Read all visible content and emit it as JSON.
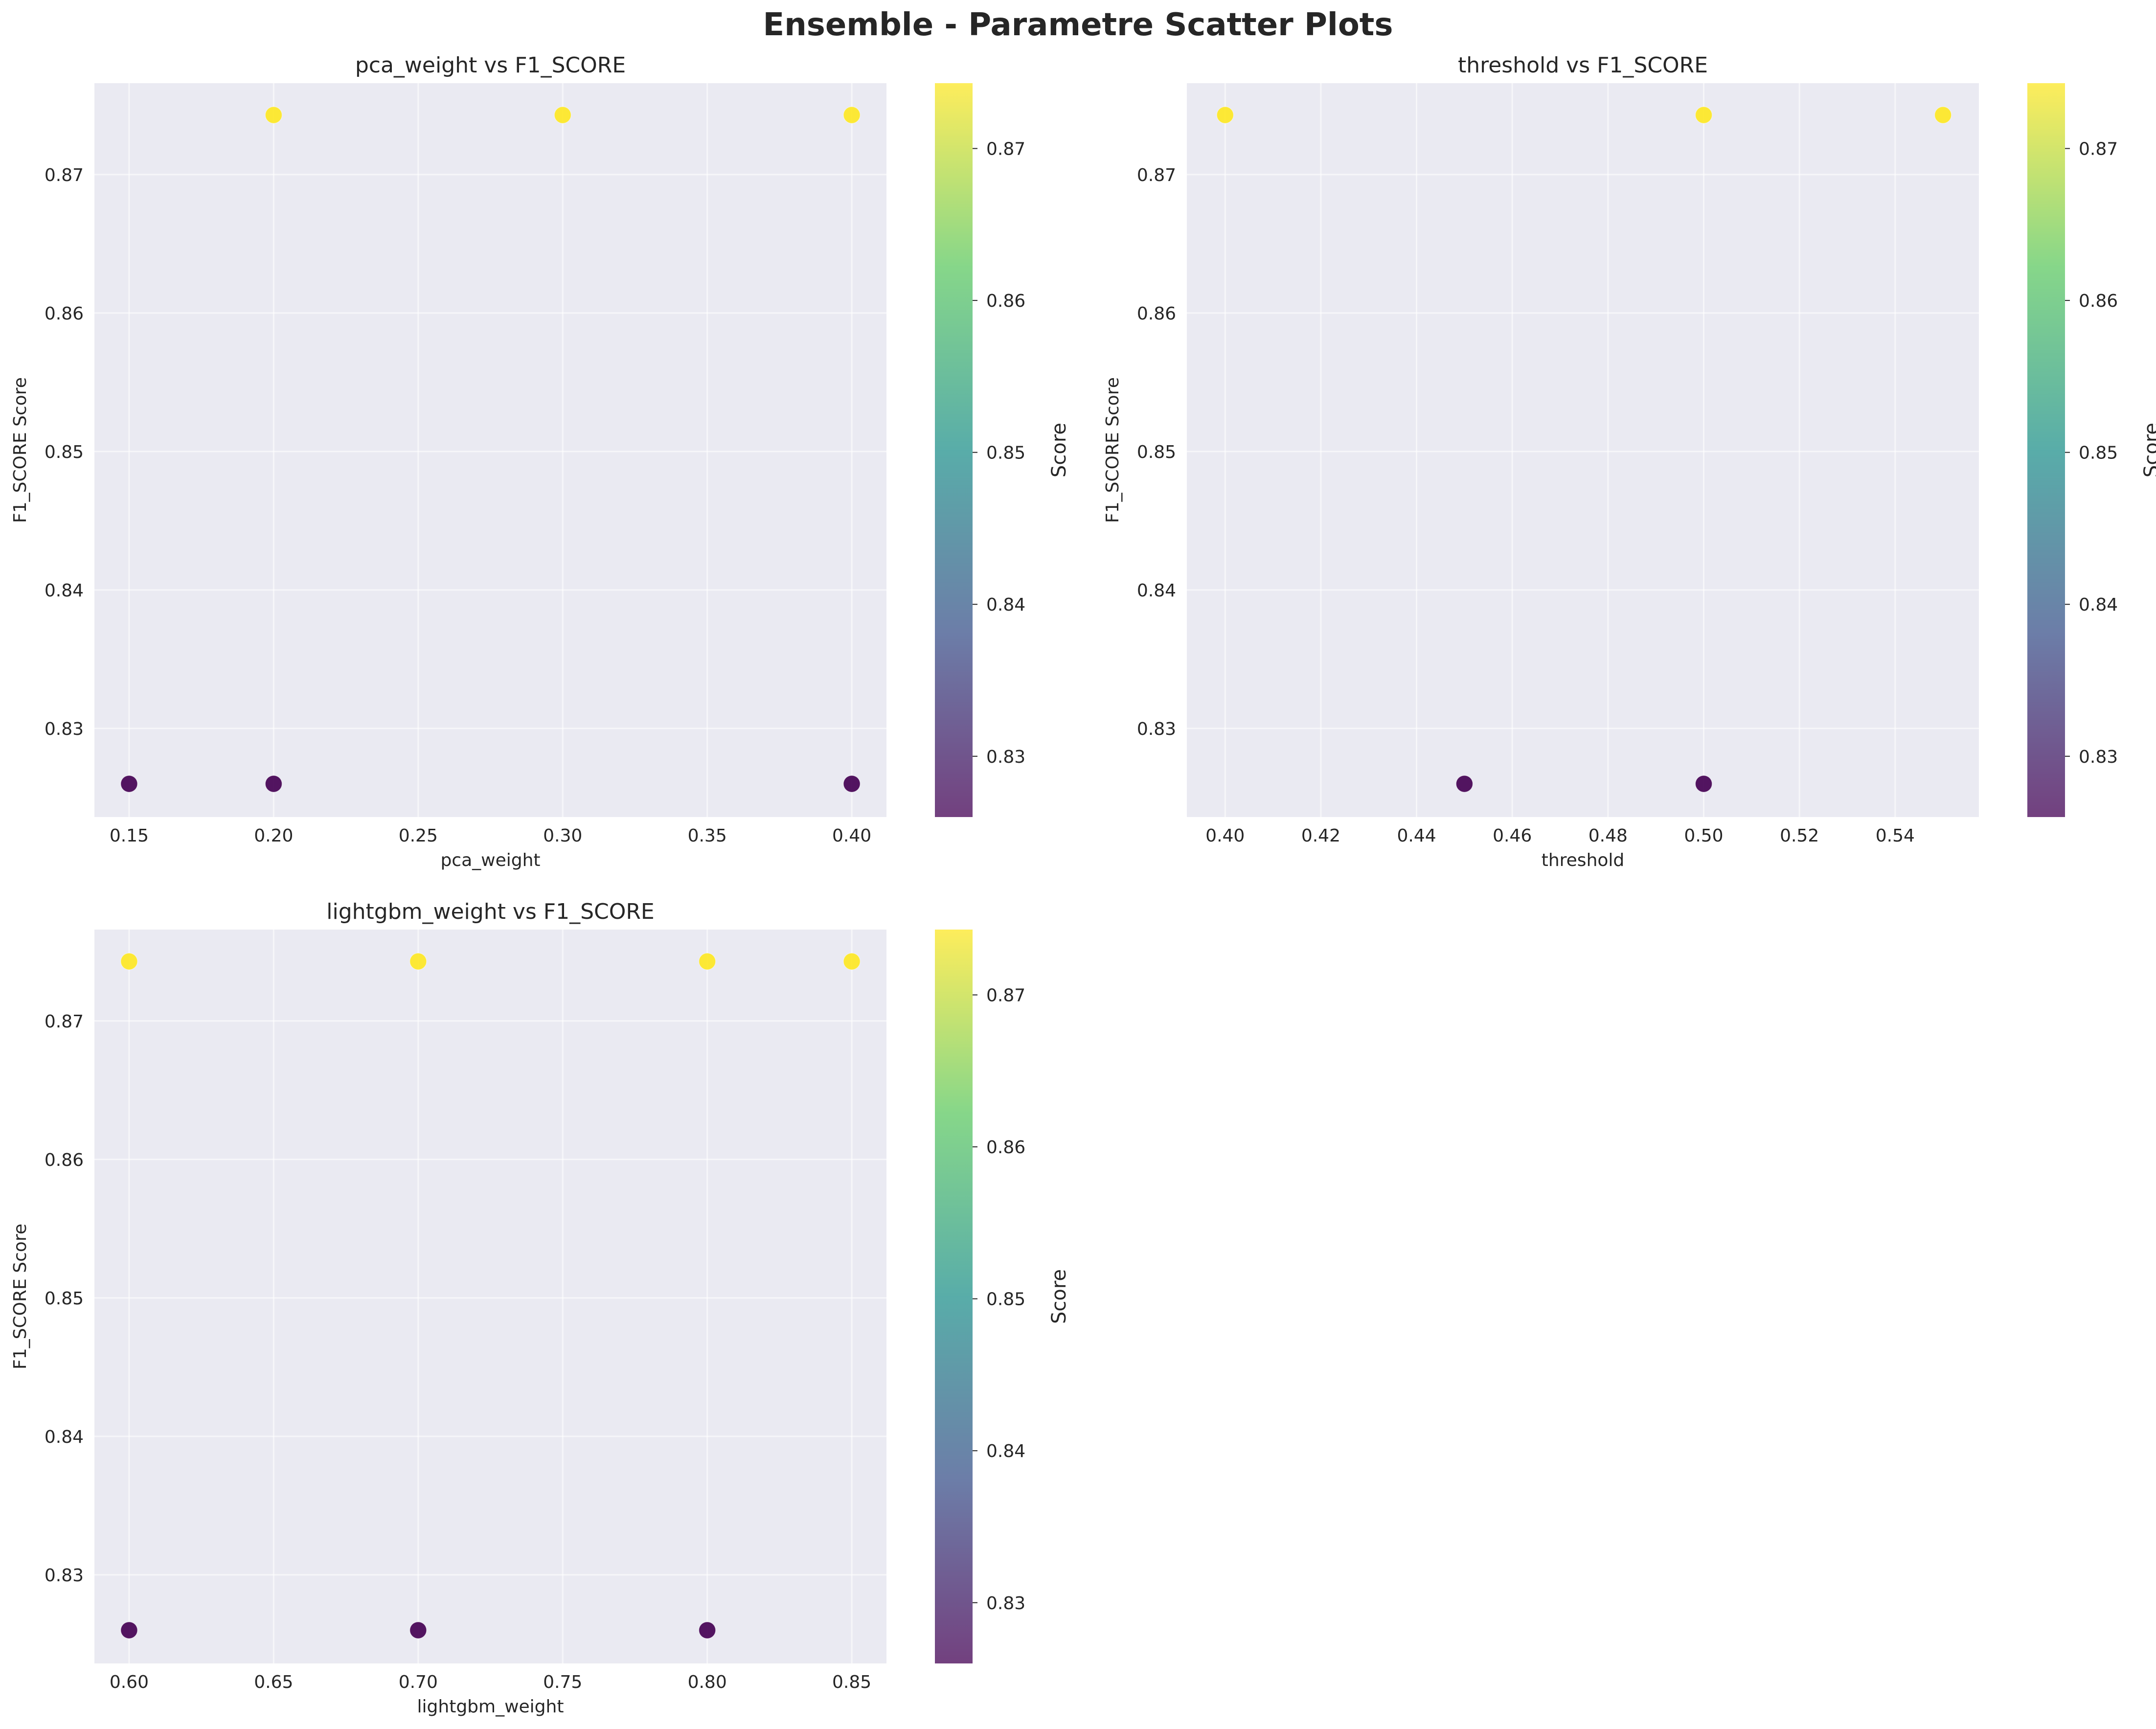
{
  "figure": {
    "title": "Ensemble - Parametre Scatter Plots"
  },
  "colors": {
    "axes_background": "#eaeaf2",
    "grid": "#ffffff",
    "text": "#262626",
    "colormap": [
      "#440154",
      "#3b528b",
      "#21918c",
      "#5ec962",
      "#fde725"
    ]
  },
  "chart_data": [
    {
      "type": "scatter",
      "title": "pca_weight vs F1_SCORE",
      "xlabel": "pca_weight",
      "ylabel": "F1_SCORE Score",
      "xlim": [
        0.138,
        0.412
      ],
      "ylim": [
        0.8236,
        0.8766
      ],
      "xticks": [
        "0.15",
        "0.20",
        "0.25",
        "0.30",
        "0.35",
        "0.40"
      ],
      "xtick_values": [
        0.15,
        0.2,
        0.25,
        0.3,
        0.35,
        0.4
      ],
      "yticks": [
        "0.83",
        "0.84",
        "0.85",
        "0.86",
        "0.87"
      ],
      "ytick_values": [
        0.83,
        0.84,
        0.85,
        0.86,
        0.87
      ],
      "grid": true,
      "points": [
        {
          "x": 0.15,
          "y": 0.826
        },
        {
          "x": 0.2,
          "y": 0.826
        },
        {
          "x": 0.2,
          "y": 0.8743
        },
        {
          "x": 0.3,
          "y": 0.8743
        },
        {
          "x": 0.4,
          "y": 0.8743
        },
        {
          "x": 0.4,
          "y": 0.826
        }
      ],
      "colorbar": {
        "label": "Score",
        "min": 0.826,
        "max": 0.8743,
        "ticks": [
          "0.83",
          "0.84",
          "0.85",
          "0.86",
          "0.87"
        ],
        "tick_values": [
          0.83,
          0.84,
          0.85,
          0.86,
          0.87
        ]
      }
    },
    {
      "type": "scatter",
      "title": "threshold vs F1_SCORE",
      "xlabel": "threshold",
      "ylabel": "F1_SCORE Score",
      "xlim": [
        0.392,
        0.5575
      ],
      "ylim": [
        0.8236,
        0.8766
      ],
      "xticks": [
        "0.40",
        "0.42",
        "0.44",
        "0.46",
        "0.48",
        "0.50",
        "0.52",
        "0.54"
      ],
      "xtick_values": [
        0.4,
        0.42,
        0.44,
        0.46,
        0.48,
        0.5,
        0.52,
        0.54
      ],
      "yticks": [
        "0.83",
        "0.84",
        "0.85",
        "0.86",
        "0.87"
      ],
      "ytick_values": [
        0.83,
        0.84,
        0.85,
        0.86,
        0.87
      ],
      "grid": true,
      "points": [
        {
          "x": 0.4,
          "y": 0.8743
        },
        {
          "x": 0.45,
          "y": 0.826
        },
        {
          "x": 0.5,
          "y": 0.826
        },
        {
          "x": 0.5,
          "y": 0.8743
        },
        {
          "x": 0.55,
          "y": 0.8743
        }
      ],
      "colorbar": {
        "label": "Score",
        "min": 0.826,
        "max": 0.8743,
        "ticks": [
          "0.83",
          "0.84",
          "0.85",
          "0.86",
          "0.87"
        ],
        "tick_values": [
          0.83,
          0.84,
          0.85,
          0.86,
          0.87
        ]
      }
    },
    {
      "type": "scatter",
      "title": "lightgbm_weight vs F1_SCORE",
      "xlabel": "lightgbm_weight",
      "ylabel": "F1_SCORE Score",
      "xlim": [
        0.588,
        0.862
      ],
      "ylim": [
        0.8236,
        0.8766
      ],
      "xticks": [
        "0.60",
        "0.65",
        "0.70",
        "0.75",
        "0.80",
        "0.85"
      ],
      "xtick_values": [
        0.6,
        0.65,
        0.7,
        0.75,
        0.8,
        0.85
      ],
      "yticks": [
        "0.83",
        "0.84",
        "0.85",
        "0.86",
        "0.87"
      ],
      "ytick_values": [
        0.83,
        0.84,
        0.85,
        0.86,
        0.87
      ],
      "grid": true,
      "points": [
        {
          "x": 0.6,
          "y": 0.8743
        },
        {
          "x": 0.6,
          "y": 0.826
        },
        {
          "x": 0.7,
          "y": 0.8743
        },
        {
          "x": 0.7,
          "y": 0.826
        },
        {
          "x": 0.8,
          "y": 0.8743
        },
        {
          "x": 0.8,
          "y": 0.826
        },
        {
          "x": 0.85,
          "y": 0.8743
        }
      ],
      "colorbar": {
        "label": "Score",
        "min": 0.826,
        "max": 0.8743,
        "ticks": [
          "0.83",
          "0.84",
          "0.85",
          "0.86",
          "0.87"
        ],
        "tick_values": [
          0.83,
          0.84,
          0.85,
          0.86,
          0.87
        ]
      }
    }
  ]
}
